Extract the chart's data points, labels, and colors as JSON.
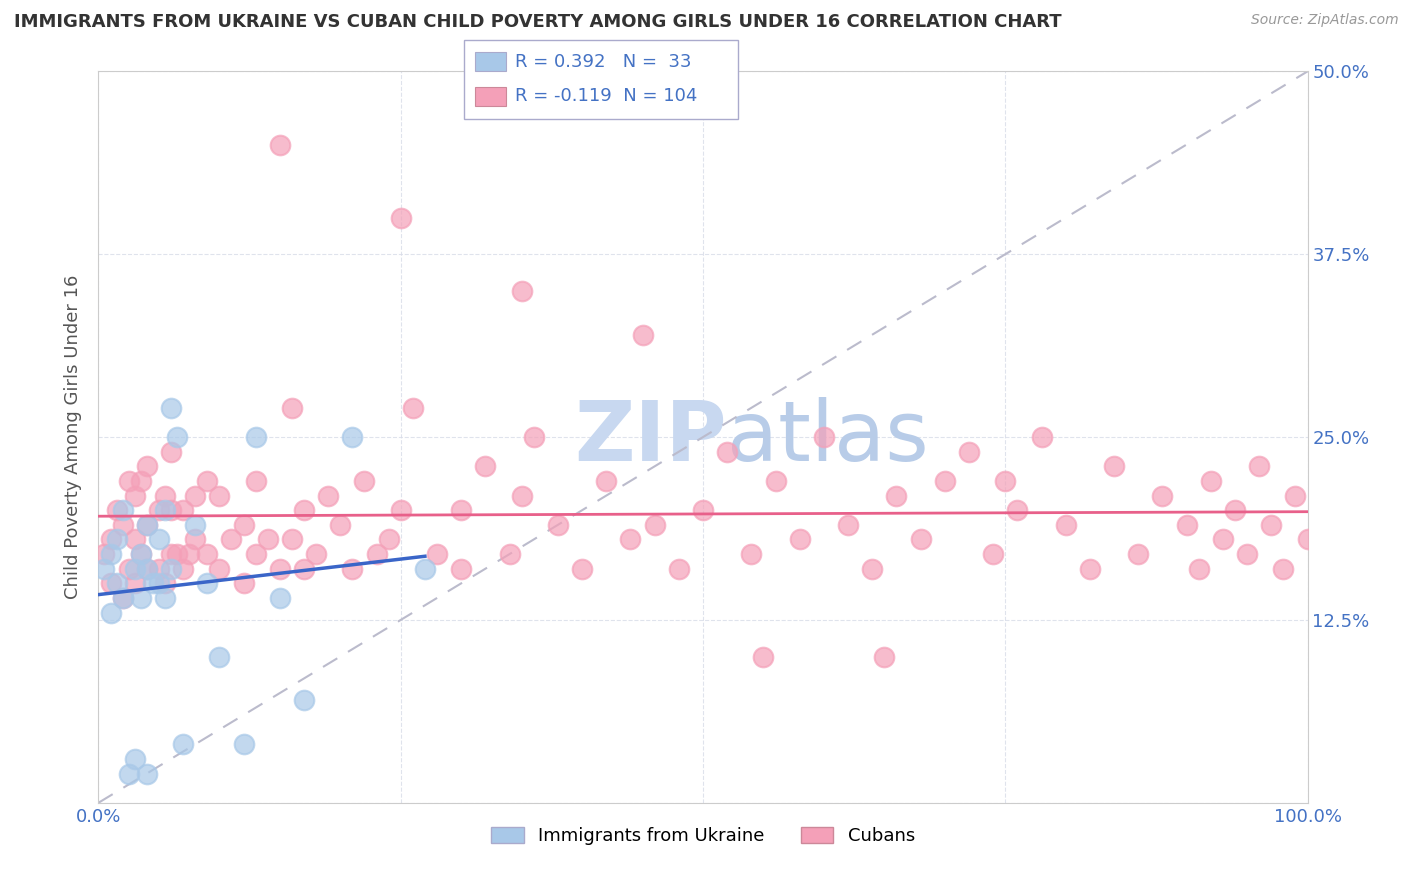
{
  "title": "IMMIGRANTS FROM UKRAINE VS CUBAN CHILD POVERTY AMONG GIRLS UNDER 16 CORRELATION CHART",
  "source": "Source: ZipAtlas.com",
  "ylabel": "Child Poverty Among Girls Under 16",
  "legend_label1": "Immigrants from Ukraine",
  "legend_label2": "Cubans",
  "r1": 0.392,
  "n1": 33,
  "r2": -0.119,
  "n2": 104,
  "xlim": [
    0,
    1.0
  ],
  "ylim": [
    0,
    0.5
  ],
  "xticks": [
    0.0,
    0.25,
    0.5,
    0.75,
    1.0
  ],
  "xticklabels": [
    "0.0%",
    "",
    "",
    "",
    "100.0%"
  ],
  "yticks": [
    0.0,
    0.125,
    0.25,
    0.375,
    0.5
  ],
  "yticklabels_right": [
    "",
    "12.5%",
    "25.0%",
    "37.5%",
    "50.0%"
  ],
  "color_ukraine": "#a8c8e8",
  "color_cuban": "#f4a0b8",
  "color_ukraine_line": "#3a65c8",
  "color_cuban_line": "#e8608a",
  "background_color": "#ffffff",
  "grid_color": "#d8dce8",
  "watermark_color": "#c8d8f0",
  "ukraine_x": [
    0.005,
    0.01,
    0.01,
    0.015,
    0.015,
    0.02,
    0.02,
    0.025,
    0.03,
    0.03,
    0.035,
    0.035,
    0.04,
    0.04,
    0.04,
    0.045,
    0.05,
    0.05,
    0.055,
    0.055,
    0.06,
    0.06,
    0.065,
    0.07,
    0.08,
    0.09,
    0.1,
    0.12,
    0.13,
    0.15,
    0.17,
    0.21,
    0.27
  ],
  "ukraine_y": [
    0.16,
    0.13,
    0.17,
    0.15,
    0.18,
    0.14,
    0.2,
    0.02,
    0.16,
    0.03,
    0.14,
    0.17,
    0.16,
    0.19,
    0.02,
    0.15,
    0.15,
    0.18,
    0.14,
    0.2,
    0.16,
    0.27,
    0.25,
    0.04,
    0.19,
    0.15,
    0.1,
    0.04,
    0.25,
    0.14,
    0.07,
    0.25,
    0.16
  ],
  "cuban_x": [
    0.005,
    0.01,
    0.01,
    0.015,
    0.02,
    0.02,
    0.025,
    0.025,
    0.03,
    0.03,
    0.03,
    0.035,
    0.035,
    0.04,
    0.04,
    0.04,
    0.05,
    0.05,
    0.055,
    0.055,
    0.06,
    0.06,
    0.06,
    0.065,
    0.07,
    0.07,
    0.075,
    0.08,
    0.08,
    0.09,
    0.09,
    0.1,
    0.1,
    0.11,
    0.12,
    0.12,
    0.13,
    0.13,
    0.14,
    0.15,
    0.16,
    0.16,
    0.17,
    0.17,
    0.18,
    0.19,
    0.2,
    0.21,
    0.22,
    0.23,
    0.24,
    0.25,
    0.26,
    0.28,
    0.3,
    0.3,
    0.32,
    0.34,
    0.35,
    0.36,
    0.38,
    0.4,
    0.42,
    0.44,
    0.46,
    0.48,
    0.5,
    0.52,
    0.54,
    0.56,
    0.58,
    0.6,
    0.62,
    0.64,
    0.66,
    0.68,
    0.7,
    0.72,
    0.74,
    0.76,
    0.78,
    0.8,
    0.82,
    0.84,
    0.86,
    0.88,
    0.9,
    0.91,
    0.92,
    0.93,
    0.94,
    0.95,
    0.96,
    0.97,
    0.98,
    0.99,
    1.0,
    0.15,
    0.25,
    0.35,
    0.45,
    0.55,
    0.65,
    0.75
  ],
  "cuban_y": [
    0.17,
    0.15,
    0.18,
    0.2,
    0.14,
    0.19,
    0.16,
    0.22,
    0.15,
    0.18,
    0.21,
    0.17,
    0.22,
    0.16,
    0.19,
    0.23,
    0.16,
    0.2,
    0.15,
    0.21,
    0.17,
    0.2,
    0.24,
    0.17,
    0.16,
    0.2,
    0.17,
    0.18,
    0.21,
    0.17,
    0.22,
    0.16,
    0.21,
    0.18,
    0.15,
    0.19,
    0.17,
    0.22,
    0.18,
    0.16,
    0.18,
    0.27,
    0.16,
    0.2,
    0.17,
    0.21,
    0.19,
    0.16,
    0.22,
    0.17,
    0.18,
    0.2,
    0.27,
    0.17,
    0.16,
    0.2,
    0.23,
    0.17,
    0.21,
    0.25,
    0.19,
    0.16,
    0.22,
    0.18,
    0.19,
    0.16,
    0.2,
    0.24,
    0.17,
    0.22,
    0.18,
    0.25,
    0.19,
    0.16,
    0.21,
    0.18,
    0.22,
    0.24,
    0.17,
    0.2,
    0.25,
    0.19,
    0.16,
    0.23,
    0.17,
    0.21,
    0.19,
    0.16,
    0.22,
    0.18,
    0.2,
    0.17,
    0.23,
    0.19,
    0.16,
    0.21,
    0.18,
    0.45,
    0.4,
    0.35,
    0.32,
    0.1,
    0.1,
    0.22
  ]
}
